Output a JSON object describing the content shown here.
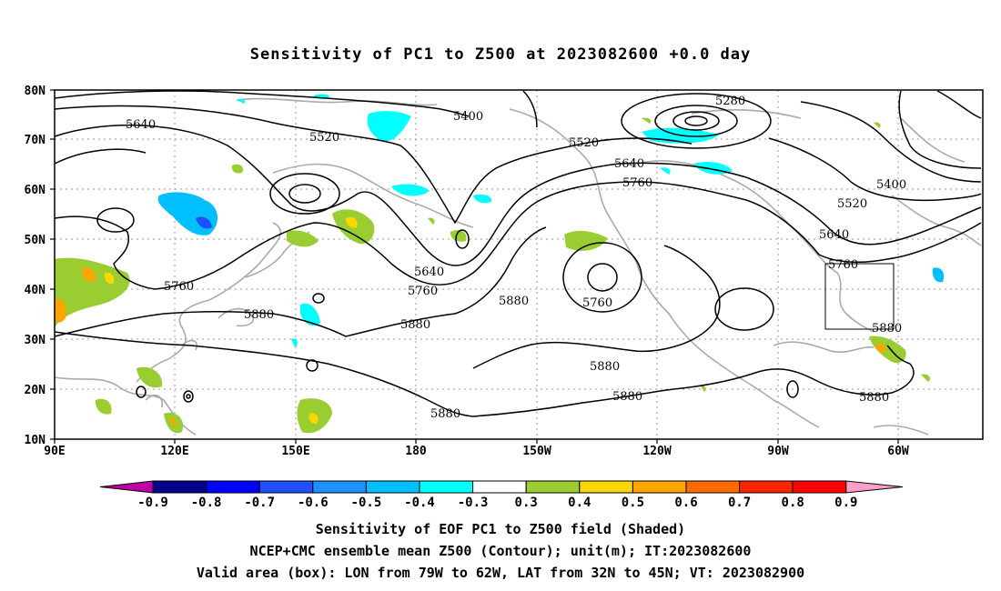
{
  "title": "Sensitivity of PC1 to Z500 at 2023082600 +0.0 day",
  "lat_labels": [
    "80N",
    "70N",
    "60N",
    "50N",
    "40N",
    "30N",
    "20N",
    "10N"
  ],
  "lon_labels": [
    "90E",
    "120E",
    "150E",
    "180",
    "150W",
    "120W",
    "90W",
    "60W"
  ],
  "contour_labels": {
    "c5280": "5280",
    "c5400a": "5400",
    "c5400b": "5400",
    "c5520a": "5520",
    "c5520b": "5520",
    "c5520c": "5520",
    "c5640a": "5640",
    "c5640b": "5640",
    "c5640c": "5640",
    "c5640d": "5640",
    "c5760a": "5760",
    "c5760b": "5760",
    "c5760c": "5760",
    "c5760d": "5760",
    "c5760e": "5760",
    "c5880a": "5880",
    "c5880b": "5880",
    "c5880c": "5880",
    "c5880d": "5880",
    "c5880e": "5880",
    "c5880f": "5880",
    "c5880g": "5880",
    "c5880h": "5880"
  },
  "colorbar": {
    "labels": [
      "-0.9",
      "-0.8",
      "-0.7",
      "-0.6",
      "-0.5",
      "-0.4",
      "-0.3",
      "0.3",
      "0.4",
      "0.5",
      "0.6",
      "0.7",
      "0.8",
      "0.9"
    ],
    "colors": [
      "#00008b",
      "#0000ff",
      "#1e50ff",
      "#1e90ff",
      "#00bfff",
      "#00ffff",
      "#ffffff",
      "#9acd32",
      "#ffd700",
      "#ffa500",
      "#ff6a00",
      "#ff2400",
      "#ff0000"
    ],
    "left_arrow_color": "#c000a0",
    "right_arrow_color": "#ff9ec8"
  },
  "caption": {
    "line1": "Sensitivity of EOF PC1 to Z500 field (Shaded)",
    "line2": "NCEP+CMC ensemble mean Z500 (Contour); unit(m); IT:2023082600",
    "line3": "Valid area (box): LON from 79W to 62W, LAT from 32N to 45N; VT: 2023082900"
  }
}
